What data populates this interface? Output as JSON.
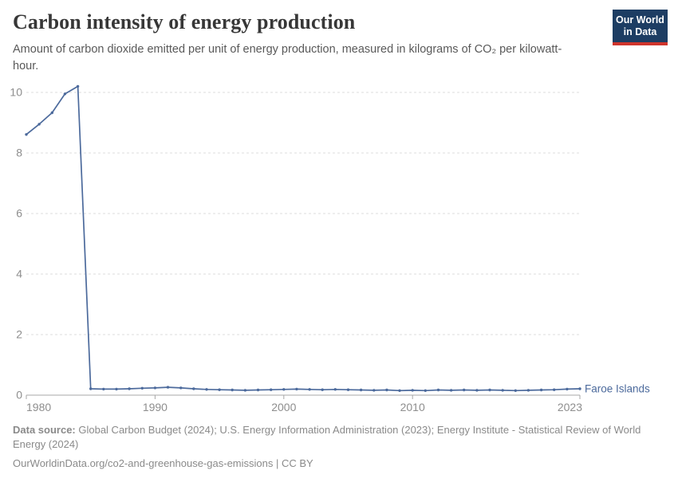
{
  "header": {
    "title": "Carbon intensity of energy production",
    "subtitle": "Amount of carbon dioxide emitted per unit of energy production, measured in kilograms of CO₂ per kilowatt-hour.",
    "logo": {
      "line1": "Our World",
      "line2": "in Data",
      "bg_color": "#1d3d63",
      "accent_color": "#cf342c"
    }
  },
  "chart_data": {
    "type": "line",
    "title": "Carbon intensity of energy production",
    "xlabel": "",
    "ylabel": "",
    "xlim": [
      1980,
      2023
    ],
    "ylim": [
      0,
      10.4
    ],
    "x_ticks": [
      1980,
      1990,
      2000,
      2010,
      2023
    ],
    "y_ticks": [
      0,
      2,
      4,
      6,
      8,
      10
    ],
    "grid": "horizontal-dashed",
    "legend_position": "end-of-line-label",
    "colors": {
      "gridline": "#dedede",
      "axis_line": "#a7a7a7",
      "tick_label": "#8e8e8e"
    },
    "series": [
      {
        "name": "Faroe Islands",
        "color": "#4c6a9c",
        "x": [
          1980,
          1981,
          1982,
          1983,
          1984,
          1985,
          1986,
          1987,
          1988,
          1989,
          1990,
          1991,
          1992,
          1993,
          1994,
          1995,
          1996,
          1997,
          1998,
          1999,
          2000,
          2001,
          2002,
          2003,
          2004,
          2005,
          2006,
          2007,
          2008,
          2009,
          2010,
          2011,
          2012,
          2013,
          2014,
          2015,
          2016,
          2017,
          2018,
          2019,
          2020,
          2021,
          2022,
          2023
        ],
        "values": [
          8.61,
          8.95,
          9.33,
          9.95,
          10.2,
          0.21,
          0.2,
          0.2,
          0.21,
          0.23,
          0.24,
          0.26,
          0.24,
          0.21,
          0.19,
          0.18,
          0.17,
          0.16,
          0.17,
          0.18,
          0.19,
          0.2,
          0.19,
          0.18,
          0.19,
          0.18,
          0.17,
          0.16,
          0.17,
          0.15,
          0.16,
          0.15,
          0.17,
          0.16,
          0.17,
          0.16,
          0.17,
          0.16,
          0.15,
          0.16,
          0.17,
          0.18,
          0.2,
          0.21
        ]
      }
    ]
  },
  "footer": {
    "source_label": "Data source:",
    "source_text": " Global Carbon Budget (2024); U.S. Energy Information Administration (2023); Energy Institute - Statistical Review of World Energy (2024)",
    "link_text": "OurWorldinData.org/co2-and-greenhouse-gas-emissions | CC BY"
  }
}
